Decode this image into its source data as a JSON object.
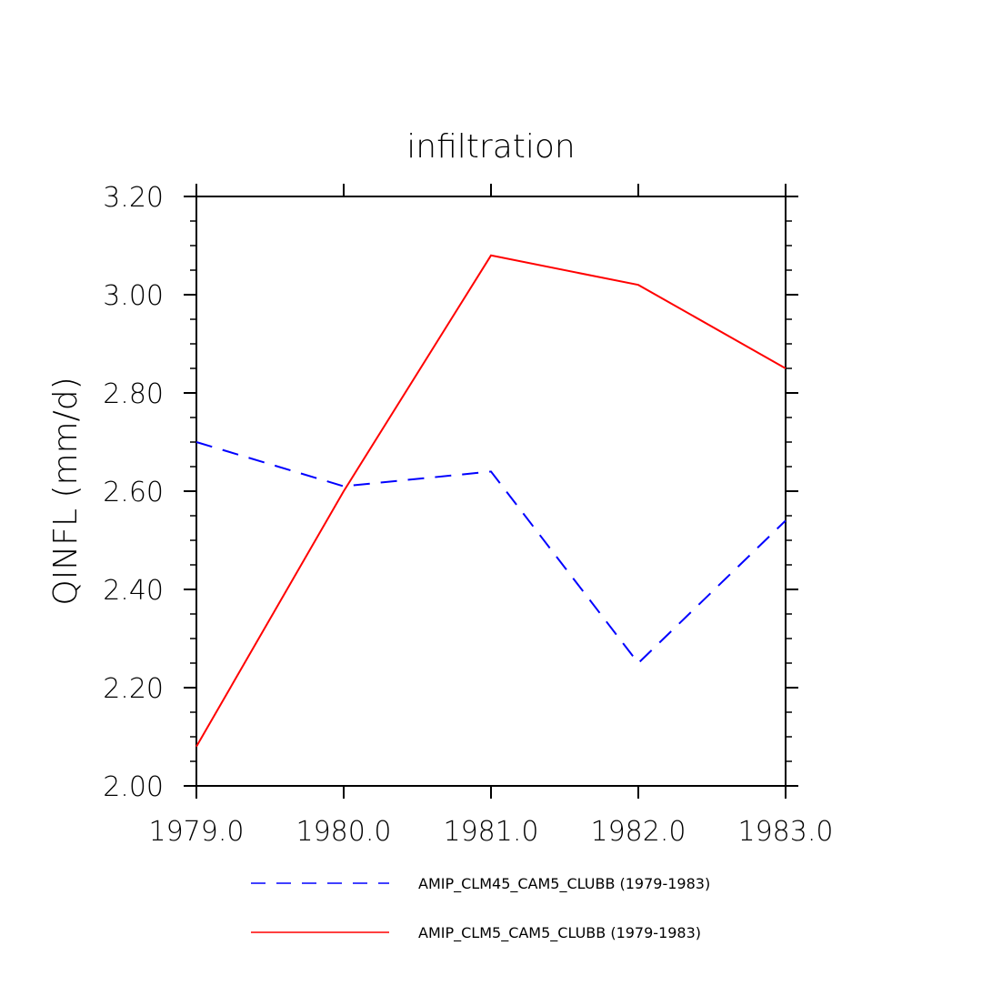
{
  "chart_data": {
    "type": "line",
    "title": "infiltration",
    "xlabel": "",
    "ylabel": "QINFL   (mm/d)",
    "x": [
      1979,
      1980,
      1981,
      1982,
      1983
    ],
    "x_tick_labels": [
      "1979.0",
      "1980.0",
      "1981.0",
      "1982.0",
      "1983.0"
    ],
    "y_tick_values": [
      2.0,
      2.2,
      2.4,
      2.6,
      2.8,
      3.0,
      3.2
    ],
    "y_tick_labels": [
      "2.00",
      "2.20",
      "2.40",
      "2.60",
      "2.80",
      "3.00",
      "3.20"
    ],
    "xlim": [
      1979,
      1983
    ],
    "ylim": [
      2.0,
      3.2
    ],
    "grid": false,
    "legend_position": "bottom",
    "series": [
      {
        "name": "AMIP_CLM45_CAM5_CLUBB (1979-1983)",
        "values": [
          2.7,
          2.61,
          2.64,
          2.25,
          2.54
        ],
        "color": "#0000ff",
        "line_style": "dashed"
      },
      {
        "name": "AMIP_CLM5_CAM5_CLUBB (1979-1983)",
        "values": [
          2.08,
          2.6,
          3.08,
          3.02,
          2.85
        ],
        "color": "#ff0000",
        "line_style": "solid"
      }
    ]
  }
}
